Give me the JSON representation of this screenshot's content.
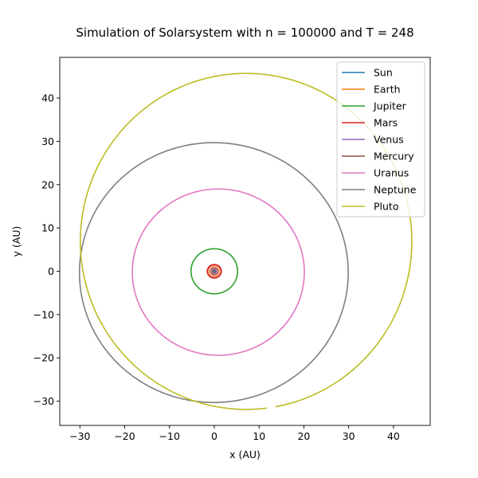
{
  "chart_data": {
    "type": "line",
    "title": "Simulation of Solarsystem with n = 100000 and T = 248",
    "xlabel": "x (AU)",
    "ylabel": "y (AU)",
    "xlim": [
      -34.5,
      48.2
    ],
    "ylim": [
      -35.6,
      49.4
    ],
    "xticks": [
      -30,
      -20,
      -10,
      0,
      10,
      20,
      30,
      40
    ],
    "yticks": [
      -30,
      -20,
      -10,
      0,
      10,
      20,
      30,
      40
    ],
    "xtick_labels": [
      "−30",
      "−20",
      "−10",
      "0",
      "10",
      "20",
      "30",
      "40"
    ],
    "ytick_labels": [
      "−30",
      "−20",
      "−10",
      "0",
      "10",
      "20",
      "30",
      "40"
    ],
    "grid": false,
    "legend_position": "top-right",
    "series": [
      {
        "name": "Sun",
        "color": "#1f77b4",
        "orbit": {
          "cx": 0,
          "cy": 0,
          "rx": 0.05,
          "ry": 0.05,
          "start_deg": 0,
          "end_deg": 360
        }
      },
      {
        "name": "Earth",
        "color": "#ff7f0e",
        "orbit": {
          "cx": 0,
          "cy": 0,
          "rx": 1.0,
          "ry": 1.0,
          "start_deg": 0,
          "end_deg": 360
        }
      },
      {
        "name": "Jupiter",
        "color": "#2ca02c",
        "orbit": {
          "cx": 0,
          "cy": 0,
          "rx": 5.2,
          "ry": 5.2,
          "start_deg": 0,
          "end_deg": 360
        }
      },
      {
        "name": "Mars",
        "color": "#d62728",
        "orbit": {
          "cx": 0,
          "cy": 0,
          "rx": 1.52,
          "ry": 1.5,
          "start_deg": 0,
          "end_deg": 360
        }
      },
      {
        "name": "Venus",
        "color": "#9467bd",
        "orbit": {
          "cx": 0,
          "cy": 0,
          "rx": 0.72,
          "ry": 0.72,
          "start_deg": 0,
          "end_deg": 360
        }
      },
      {
        "name": "Mercury",
        "color": "#8c564b",
        "orbit": {
          "cx": 0,
          "cy": 0,
          "rx": 0.39,
          "ry": 0.39,
          "start_deg": 0,
          "end_deg": 360
        }
      },
      {
        "name": "Uranus",
        "color": "#e377c2",
        "orbit": {
          "cx": 0.9,
          "cy": -0.2,
          "rx": 19.2,
          "ry": 19.2,
          "start_deg": 0,
          "end_deg": 360
        }
      },
      {
        "name": "Neptune",
        "color": "#7f7f7f",
        "orbit": {
          "cx": -0.1,
          "cy": -0.3,
          "rx": 30.0,
          "ry": 30.0,
          "start_deg": 0,
          "end_deg": 360
        }
      },
      {
        "name": "Pluto",
        "color": "#bcbd22",
        "orbit": {
          "cx": 7.1,
          "cy": 6.9,
          "rx": 37.0,
          "ry": 38.8,
          "start_deg": 0,
          "end_deg": 360,
          "gap_from": {
            "x": 11.7,
            "y": -31.6
          },
          "gap_to": {
            "x": 13.6,
            "y": -31.3
          }
        }
      }
    ]
  }
}
